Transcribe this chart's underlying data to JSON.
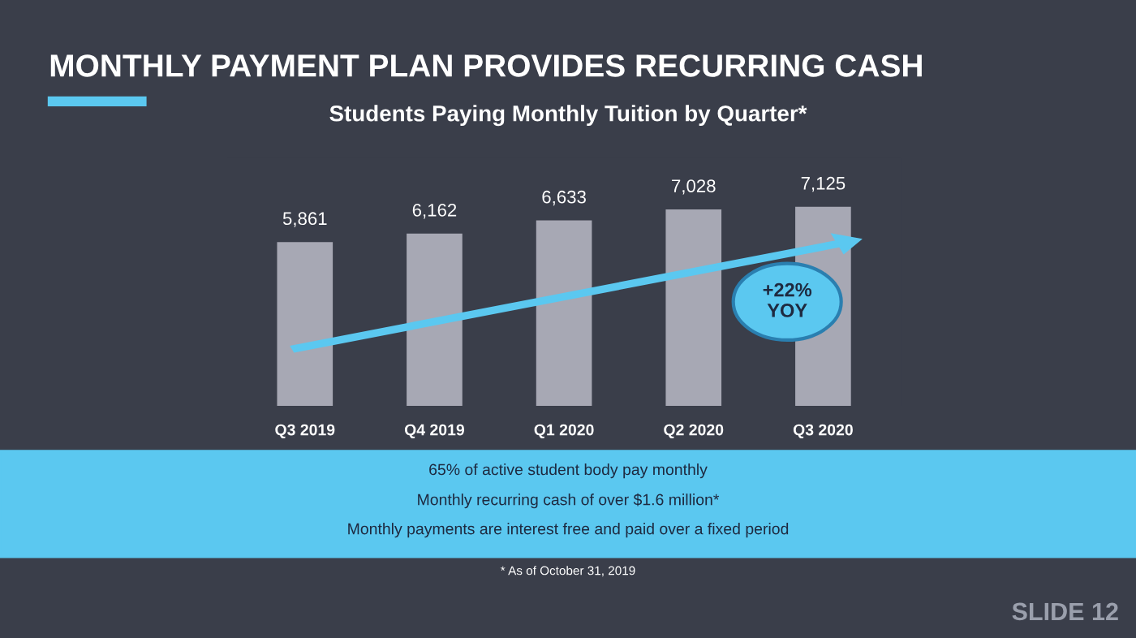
{
  "chart_data": {
    "type": "bar",
    "title": "MONTHLY PAYMENT PLAN PROVIDES RECURRING CASH",
    "subtitle": "Students Paying Monthly Tuition by Quarter*",
    "categories": [
      "Q3 2019",
      "Q4 2019",
      "Q1 2020",
      "Q2 2020",
      "Q3 2020"
    ],
    "values": [
      5861,
      6162,
      6633,
      7028,
      7125
    ],
    "color": "#a7a8b4",
    "value_labels": [
      "5,861",
      "6,162",
      "6,633",
      "7,028",
      "7,125"
    ],
    "grid": false,
    "legend": false,
    "annotations": [
      "+22%\nYOY",
      "65% of active student body pay monthly",
      "Monthly recurring cash of over $1.6 million*",
      "Monthly payments are interest free and paid over a fixed period",
      "* As of October 31, 2019",
      "SLIDE 12"
    ]
  }
}
